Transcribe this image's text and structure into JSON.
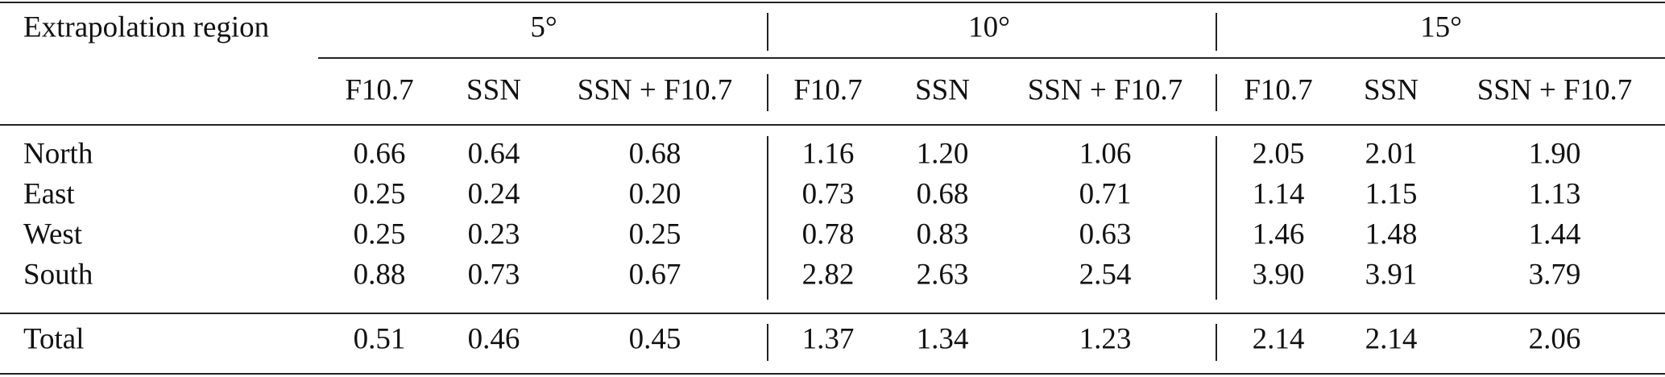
{
  "table": {
    "corner": "Extrapolation region",
    "groups": [
      "5°",
      "10°",
      "15°"
    ],
    "columns": [
      "F10.7",
      "SSN",
      "SSN + F10.7",
      "F10.7",
      "SSN",
      "SSN + F10.7",
      "F10.7",
      "SSN",
      "SSN + F10.7"
    ],
    "rows": [
      {
        "label": "North",
        "values": [
          "0.66",
          "0.64",
          "0.68",
          "1.16",
          "1.20",
          "1.06",
          "2.05",
          "2.01",
          "1.90"
        ]
      },
      {
        "label": "East",
        "values": [
          "0.25",
          "0.24",
          "0.20",
          "0.73",
          "0.68",
          "0.71",
          "1.14",
          "1.15",
          "1.13"
        ]
      },
      {
        "label": "West",
        "values": [
          "0.25",
          "0.23",
          "0.25",
          "0.78",
          "0.83",
          "0.63",
          "1.46",
          "1.48",
          "1.44"
        ]
      },
      {
        "label": "South",
        "values": [
          "0.88",
          "0.73",
          "0.67",
          "2.82",
          "2.63",
          "2.54",
          "3.90",
          "3.91",
          "3.79"
        ]
      }
    ],
    "total": {
      "label": "Total",
      "values": [
        "0.51",
        "0.46",
        "0.45",
        "1.37",
        "1.34",
        "1.23",
        "2.14",
        "2.14",
        "2.06"
      ]
    }
  }
}
